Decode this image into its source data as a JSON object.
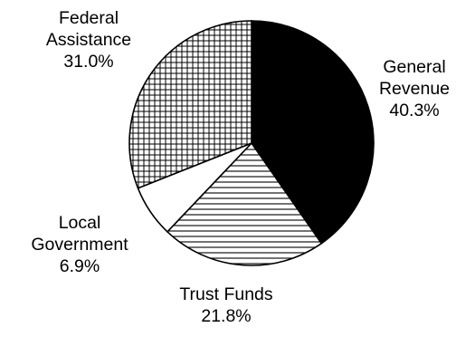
{
  "chart_data": {
    "type": "pie",
    "slices": [
      {
        "label": [
          "General",
          "Revenue"
        ],
        "value": 40.3,
        "value_label": "40.3%",
        "pattern": "solid-black"
      },
      {
        "label": [
          "Trust Funds"
        ],
        "value": 21.8,
        "value_label": "21.8%",
        "pattern": "horizontal-lines"
      },
      {
        "label": [
          "Local",
          "Government"
        ],
        "value": 6.9,
        "value_label": "6.9%",
        "pattern": "white"
      },
      {
        "label": [
          "Federal",
          "Assistance"
        ],
        "value": 31.0,
        "value_label": "31.0%",
        "pattern": "crosshatch-grid"
      }
    ],
    "start": "top",
    "direction": "clockwise"
  }
}
